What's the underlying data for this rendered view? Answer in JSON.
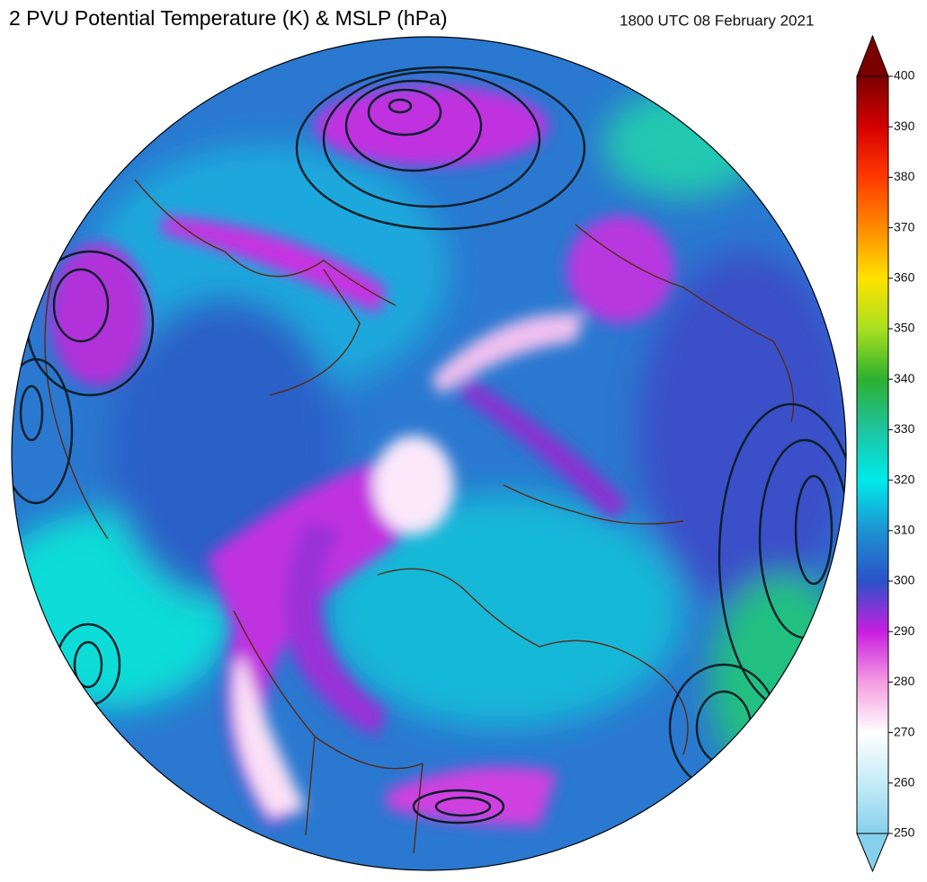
{
  "title": "2 PVU Potential Temperature (K) & MSLP (hPa)",
  "valid_time": "1800 UTC 08 February 2021",
  "colorbar": {
    "range": [
      250,
      400
    ],
    "ticks": [
      250,
      260,
      270,
      280,
      290,
      300,
      310,
      320,
      330,
      340,
      350,
      360,
      370,
      380,
      390,
      400
    ],
    "colors": [
      "#86d0ec",
      "#c4ecf7",
      "#ffffff",
      "#f49ce0",
      "#c81ee0",
      "#2a52c8",
      "#1e92d2",
      "#00eaea",
      "#1ec4a0",
      "#2eb030",
      "#a8e020",
      "#ffe200",
      "#ff8a00",
      "#ff3a00",
      "#d40000",
      "#7a0000"
    ]
  }
}
